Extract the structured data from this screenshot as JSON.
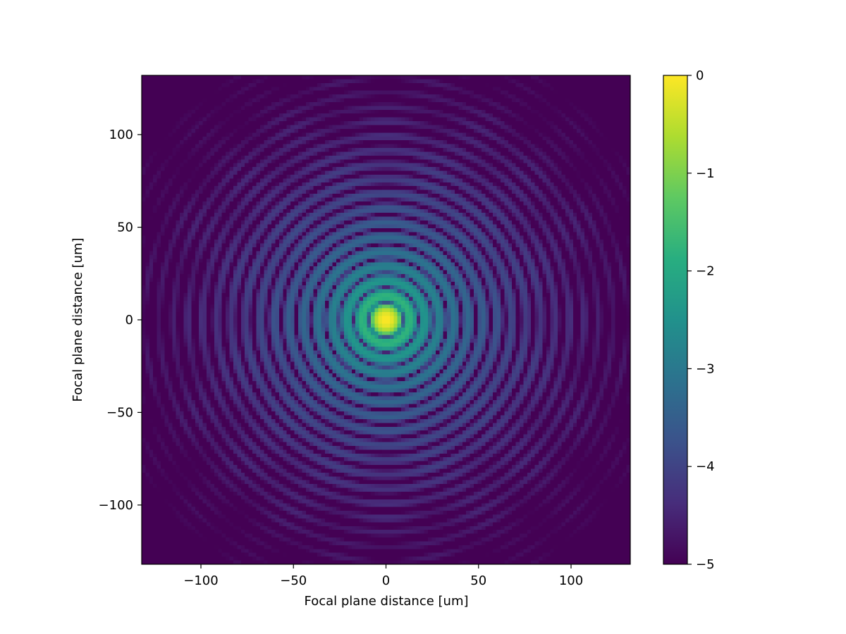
{
  "chart_data": {
    "type": "heatmap",
    "title": "",
    "xlabel": "Focal plane distance [um]",
    "ylabel": "Focal plane distance [um]",
    "xlim": [
      -132,
      132
    ],
    "ylim": [
      -132,
      132
    ],
    "xticks": [
      -100,
      -50,
      0,
      50,
      100
    ],
    "yticks": [
      -100,
      -50,
      0,
      50,
      100
    ],
    "xtick_labels": [
      "−100",
      "−50",
      "0",
      "50",
      "100"
    ],
    "ytick_labels": [
      "−100",
      "−50",
      "0",
      "50",
      "100"
    ],
    "grid": false,
    "colormap": "viridis",
    "colorbar": {
      "range": [
        -5,
        0
      ],
      "ticks": [
        0,
        -1,
        -2,
        -3,
        -4,
        -5
      ],
      "tick_labels": [
        "0",
        "−1",
        "−2",
        "−3",
        "−4",
        "−5"
      ]
    },
    "grid_cells": 128,
    "central_peak": {
      "x": 0,
      "y": 0,
      "value": 0
    },
    "first_dark_ring_radius": 9.5,
    "ring_spacing": 5.5
  }
}
